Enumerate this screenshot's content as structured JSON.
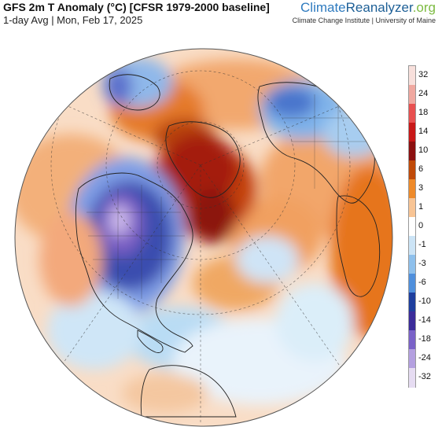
{
  "header": {
    "title": "GFS 2m T Anomaly (°C) [CFSR 1979-2000 baseline]",
    "subtitle": "1-day Avg | Mon, Feb 17, 2025"
  },
  "brand": {
    "part1": "Climate",
    "part2": "Reanalyzer",
    "part3": ".org",
    "credit": "Climate Change Institute | University of Maine"
  },
  "legend": {
    "labels": [
      "32",
      "24",
      "18",
      "14",
      "10",
      "6",
      "3",
      "1",
      "0",
      "-1",
      "-3",
      "-6",
      "-10",
      "-14",
      "-18",
      "-24",
      "-32"
    ],
    "colors": [
      "#f8e0dc",
      "#f0a8a0",
      "#e85050",
      "#c81818",
      "#8c1010",
      "#c04a08",
      "#ee8a2a",
      "#f8c494",
      "#ffffff",
      "#cce4f6",
      "#8ec0ec",
      "#4f8fdc",
      "#1e3e9e",
      "#3b2c9a",
      "#7a62c8",
      "#b4a0e0",
      "#e6dcf2"
    ]
  }
}
